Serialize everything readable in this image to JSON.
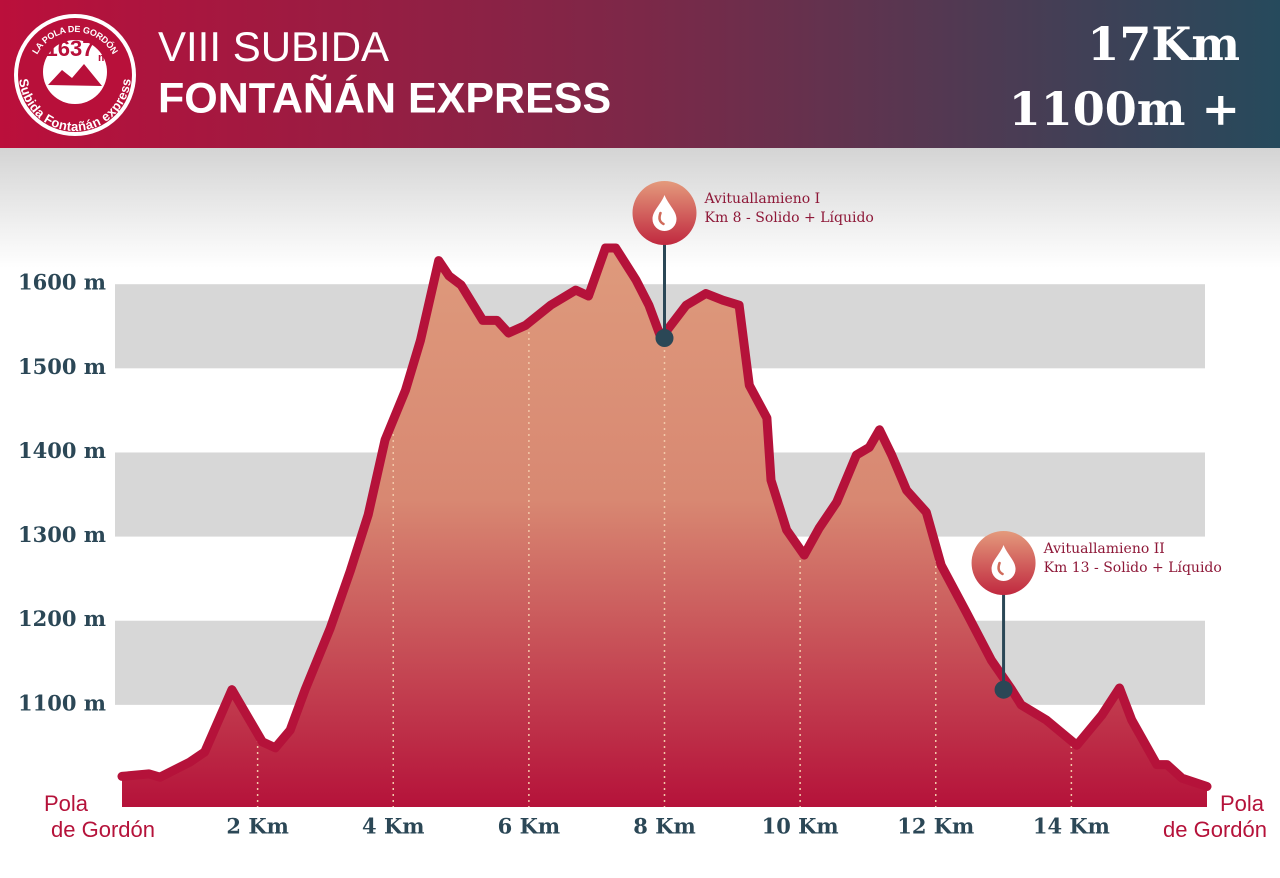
{
  "logo": {
    "top": "LA POLA DE GORDÓN",
    "number": "1637",
    "unit": "m",
    "bottom": "Subida Fontañán express"
  },
  "header": {
    "title_line1": "VIII SUBIDA",
    "title_line2": "FONTAÑÁN EXPRESS",
    "distance": "17Km",
    "elevation_gain": "1100m +"
  },
  "chart_data": {
    "type": "area",
    "x": [
      0,
      0.4,
      0.56,
      1.0,
      1.22,
      1.62,
      2.07,
      2.26,
      2.48,
      2.7,
      3.07,
      3.37,
      3.63,
      3.88,
      4.18,
      4.4,
      4.67,
      4.82,
      5.0,
      5.32,
      5.53,
      5.7,
      5.95,
      6.32,
      6.69,
      6.88,
      7.13,
      7.28,
      7.58,
      7.77,
      7.95,
      8.32,
      8.61,
      8.86,
      9.1,
      9.25,
      9.51,
      9.57,
      9.8,
      10.06,
      10.28,
      10.54,
      10.83,
      11.02,
      11.17,
      11.35,
      11.57,
      11.86,
      12.08,
      12.45,
      12.82,
      13.12,
      13.26,
      13.63,
      14.08,
      14.45,
      14.71,
      14.89,
      15.26,
      15.41,
      15.63,
      16
    ],
    "values": [
      1015,
      1018,
      1014,
      1032,
      1044,
      1118,
      1056,
      1049,
      1070,
      1118,
      1191,
      1260,
      1326,
      1415,
      1474,
      1533,
      1628,
      1610,
      1599,
      1557,
      1557,
      1542,
      1551,
      1575,
      1593,
      1586,
      1643,
      1643,
      1605,
      1575,
      1536,
      1575,
      1589,
      1581,
      1575,
      1480,
      1441,
      1367,
      1308,
      1278,
      1310,
      1341,
      1397,
      1406,
      1427,
      1397,
      1355,
      1329,
      1266,
      1210,
      1153,
      1118,
      1100,
      1082,
      1052,
      1088,
      1120,
      1082,
      1029,
      1029,
      1013,
      1003
    ],
    "color": "#b5123a",
    "xlim": [
      0,
      16
    ],
    "xticks": [
      {
        "value": 2,
        "label": "2 Km"
      },
      {
        "value": 4,
        "label": "4 Km"
      },
      {
        "value": 6,
        "label": "6 Km"
      },
      {
        "value": 8,
        "label": "8 Km"
      },
      {
        "value": 10,
        "label": "10 Km"
      },
      {
        "value": 12,
        "label": "12 Km"
      },
      {
        "value": 14,
        "label": "14 Km"
      }
    ],
    "ylim": [
      1000,
      1750
    ],
    "yticks": [
      {
        "value": 1100,
        "label": "1100 m"
      },
      {
        "value": 1200,
        "label": "1200 m"
      },
      {
        "value": 1300,
        "label": "1300 m"
      },
      {
        "value": 1400,
        "label": "1400 m"
      },
      {
        "value": 1500,
        "label": "1500 m"
      },
      {
        "value": 1600,
        "label": "1600 m"
      }
    ],
    "grid_bands": true,
    "start_label": [
      "Pola",
      "de Gordón"
    ],
    "end_label": [
      "Pola",
      "de Gordón"
    ],
    "annotations": [
      {
        "x": 8,
        "y": 1536,
        "lines": [
          "Avituallamieno I",
          "Km 8 - Solido + Líquido"
        ]
      },
      {
        "x": 13,
        "y": 1118,
        "lines": [
          "Avituallamieno II",
          "Km 13 - Solido + Líquido"
        ]
      }
    ]
  }
}
